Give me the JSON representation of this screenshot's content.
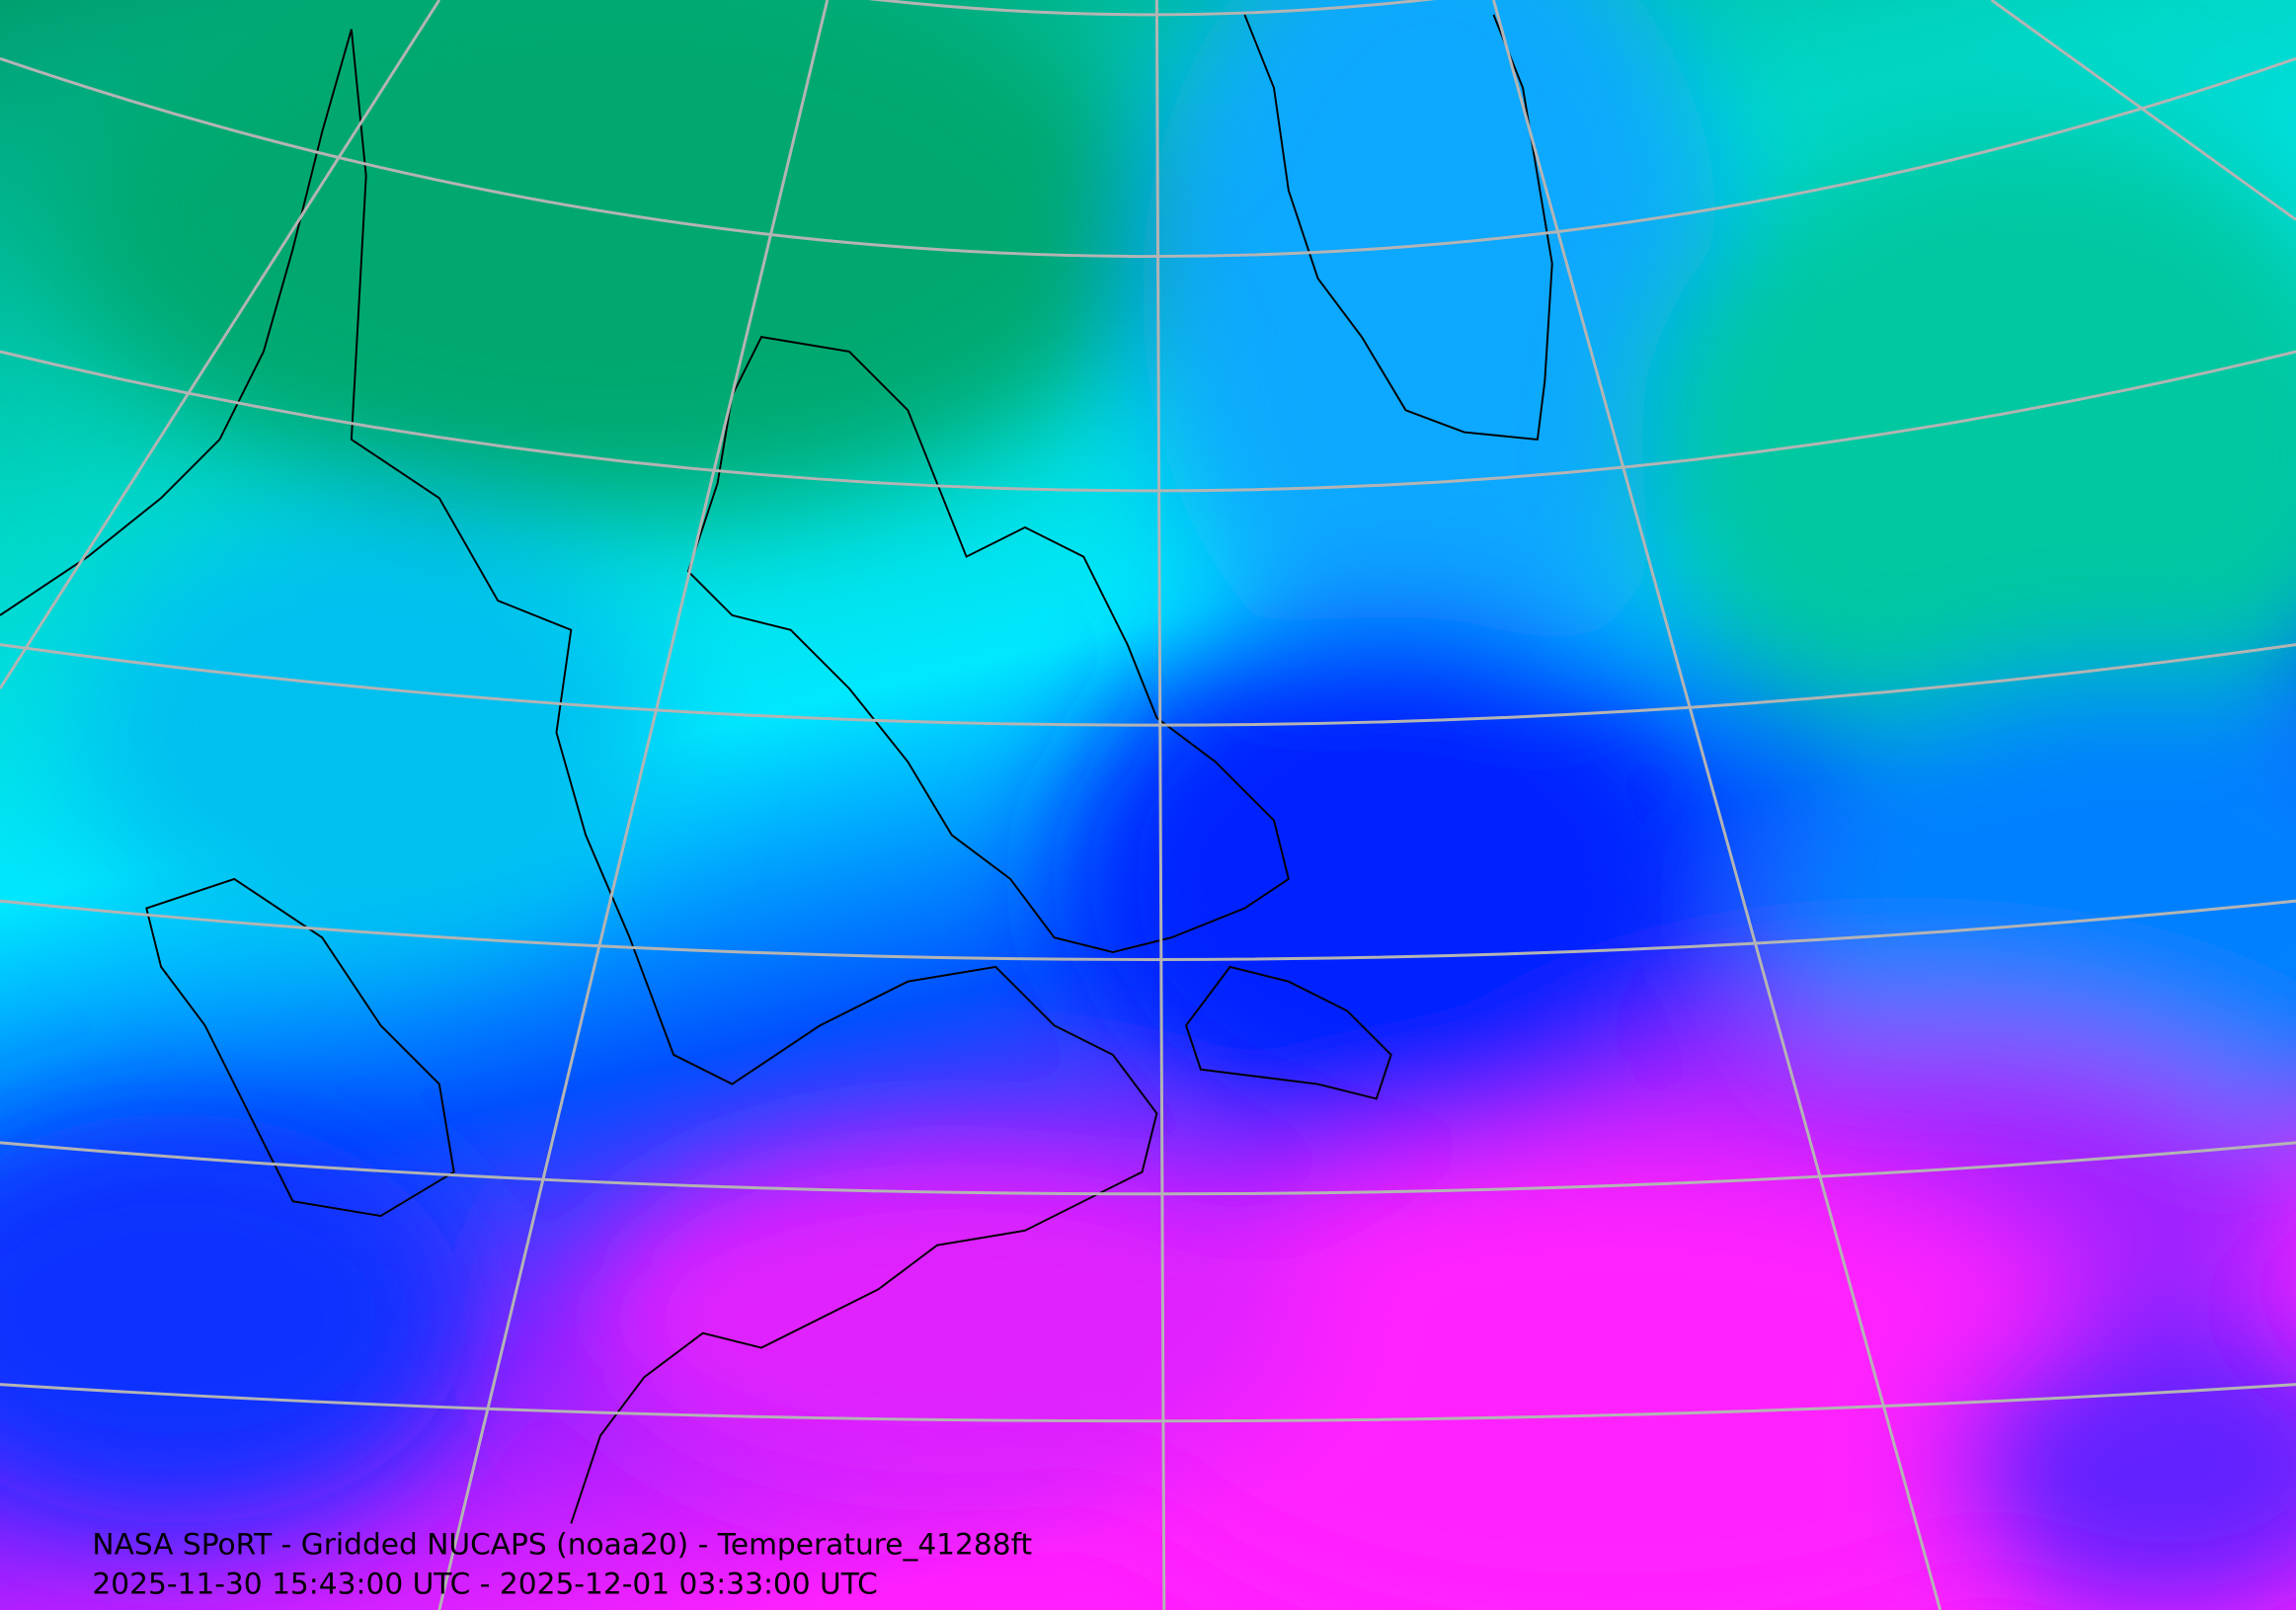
{
  "caption": {
    "title": "NASA SPoRT - Gridded NUCAPS (noaa20) - Temperature_41288ft",
    "time_range": "2025-11-30 15:43:00 UTC - 2025-12-01 03:33:00 UTC"
  }
}
